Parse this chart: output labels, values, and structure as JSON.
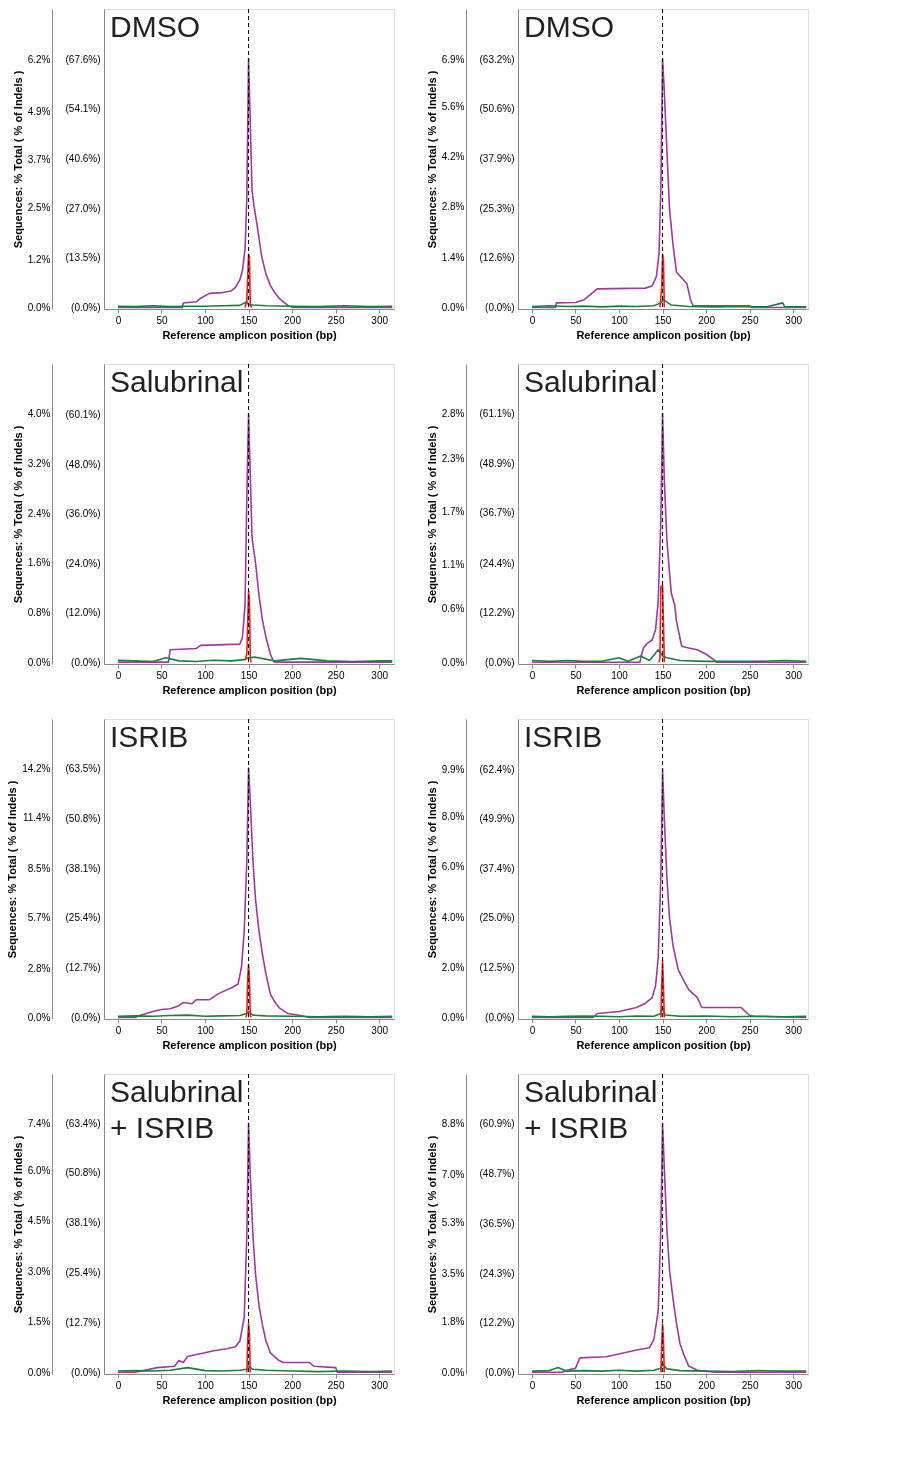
{
  "chart_data": [
    {
      "type": "line",
      "title": "DMSO",
      "xlabel": "Reference amplicon position (bp)",
      "ylabel": "Sequences: % Total  ( % of Indels )",
      "xlim": [
        -16,
        317
      ],
      "xticks": [
        0,
        50,
        100,
        150,
        200,
        250,
        300
      ],
      "ylim": [
        -0.04,
        7.45
      ],
      "yticks": [
        {
          "value": 0,
          "label": "0.0%"
        },
        {
          "value": 1.2,
          "label": "1.2%"
        },
        {
          "value": 2.5,
          "label": "2.5%"
        },
        {
          "value": 3.7,
          "label": "3.7%"
        },
        {
          "value": 4.9,
          "label": "4.9%"
        },
        {
          "value": 6.2,
          "label": "6.2%"
        }
      ],
      "y2lim": [
        -0.4,
        81.3
      ],
      "y2ticks": [
        {
          "value": 0,
          "label": "(0.0%)"
        },
        {
          "value": 13.5,
          "label": "(13.5%)"
        },
        {
          "value": 27.0,
          "label": "(27.0%)"
        },
        {
          "value": 40.6,
          "label": "(40.6%)"
        },
        {
          "value": 54.1,
          "label": "(54.1%)"
        },
        {
          "value": 67.6,
          "label": "(67.6%)"
        }
      ],
      "grid": false,
      "ref_lines": [
        {
          "axis": "x",
          "value": 150,
          "line_style": "dashed",
          "color": "#000000"
        }
      ],
      "series": [
        {
          "color": "#9e3a9e",
          "x": [
            0,
            74,
            75,
            90,
            95,
            105,
            120,
            130,
            135,
            140,
            143,
            146,
            148,
            150,
            152,
            154,
            156,
            160,
            165,
            170,
            175,
            180,
            185,
            190,
            195,
            200,
            315
          ],
          "values": [
            0,
            0,
            0.11,
            0.14,
            0.23,
            0.35,
            0.37,
            0.41,
            0.5,
            0.69,
            0.92,
            1.47,
            2.75,
            6.2,
            4.59,
            2.93,
            2.57,
            2.02,
            1.28,
            0.83,
            0.55,
            0.37,
            0.23,
            0.14,
            0.05,
            0,
            0
          ]
        },
        {
          "color": "#e8211b",
          "axis": "y2",
          "x": [
            146,
            148,
            150,
            151,
            152,
            154
          ],
          "values": [
            0,
            2,
            14.5,
            14,
            0.5,
            0
          ]
        },
        {
          "color": "#1a7f3c",
          "x": [
            0,
            20,
            40,
            60,
            80,
            100,
            120,
            140,
            148,
            150,
            155,
            170,
            200,
            230,
            260,
            290,
            315
          ],
          "values": [
            0.03,
            0.02,
            0.04,
            0.02,
            0.03,
            0.03,
            0.04,
            0.05,
            0.14,
            0.07,
            0.06,
            0.04,
            0.03,
            0.02,
            0.04,
            0.02,
            0.03
          ]
        }
      ]
    },
    {
      "type": "line",
      "title": "DMSO",
      "xlabel": "Reference amplicon position (bp)",
      "ylabel": "Sequences: % Total  ( % of Indels )",
      "xlim": [
        -16,
        317
      ],
      "xticks": [
        0,
        50,
        100,
        150,
        200,
        250,
        300
      ],
      "ylim": [
        -0.04,
        8.3
      ],
      "yticks": [
        {
          "value": 0,
          "label": "0.0%"
        },
        {
          "value": 1.4,
          "label": "1.4%"
        },
        {
          "value": 2.8,
          "label": "2.8%"
        },
        {
          "value": 4.2,
          "label": "4.2%"
        },
        {
          "value": 5.6,
          "label": "5.6%"
        },
        {
          "value": 6.9,
          "label": "6.9%"
        }
      ],
      "y2lim": [
        -0.4,
        76.0
      ],
      "y2ticks": [
        {
          "value": 0,
          "label": "(0.0%)"
        },
        {
          "value": 12.6,
          "label": "(12.6%)"
        },
        {
          "value": 25.3,
          "label": "(25.3%)"
        },
        {
          "value": 37.9,
          "label": "(37.9%)"
        },
        {
          "value": 50.6,
          "label": "(50.6%)"
        },
        {
          "value": 63.2,
          "label": "(63.2%)"
        }
      ],
      "grid": false,
      "ref_lines": [
        {
          "axis": "x",
          "value": 150,
          "line_style": "dashed",
          "color": "#000000"
        }
      ],
      "series": [
        {
          "color": "#9e3a9e",
          "x": [
            0,
            27,
            28,
            50,
            60,
            75,
            130,
            138,
            143,
            146,
            148,
            150,
            152,
            155,
            158,
            162,
            166,
            172,
            178,
            182,
            185,
            250,
            252,
            315
          ],
          "values": [
            0,
            0,
            0.13,
            0.14,
            0.22,
            0.52,
            0.54,
            0.6,
            0.87,
            1.53,
            3.28,
            6.9,
            6.01,
            4.37,
            2.73,
            1.75,
            0.98,
            0.82,
            0.66,
            0.22,
            0.05,
            0.05,
            0,
            0
          ]
        },
        {
          "color": "#e8211b",
          "axis": "y2",
          "x": [
            147,
            149,
            150,
            151,
            152
          ],
          "values": [
            0,
            5,
            13.5,
            12,
            0
          ]
        },
        {
          "color": "#1a7f3c",
          "x": [
            0,
            20,
            40,
            60,
            80,
            100,
            120,
            140,
            148,
            151,
            160,
            180,
            210,
            240,
            270,
            288,
            290,
            315
          ],
          "values": [
            0.03,
            0.05,
            0.03,
            0.04,
            0.02,
            0.04,
            0.03,
            0.05,
            0.13,
            0.22,
            0.07,
            0.03,
            0.02,
            0.03,
            0.02,
            0.13,
            0.03,
            0.02
          ]
        }
      ]
    },
    {
      "type": "line",
      "title": "Salubrinal",
      "xlabel": "Reference amplicon position (bp)",
      "ylabel": "Sequences: % Total  ( % of Indels )",
      "xlim": [
        -16,
        317
      ],
      "xticks": [
        0,
        50,
        100,
        150,
        200,
        250,
        300
      ],
      "ylim": [
        -0.03,
        4.8
      ],
      "yticks": [
        {
          "value": 0,
          "label": "0.0%"
        },
        {
          "value": 0.8,
          "label": "0.8%"
        },
        {
          "value": 1.6,
          "label": "1.6%"
        },
        {
          "value": 2.4,
          "label": "2.4%"
        },
        {
          "value": 3.2,
          "label": "3.2%"
        },
        {
          "value": 4.0,
          "label": "4.0%"
        }
      ],
      "y2lim": [
        -0.4,
        72.2
      ],
      "y2ticks": [
        {
          "value": 0,
          "label": "(0.0%)"
        },
        {
          "value": 12.0,
          "label": "(12.0%)"
        },
        {
          "value": 24.0,
          "label": "(24.0%)"
        },
        {
          "value": 36.0,
          "label": "(36.0%)"
        },
        {
          "value": 48.0,
          "label": "(48.0%)"
        },
        {
          "value": 60.1,
          "label": "(60.1%)"
        }
      ],
      "grid": false,
      "ref_lines": [
        {
          "axis": "x",
          "value": 150,
          "line_style": "dashed",
          "color": "#000000"
        }
      ],
      "series": [
        {
          "color": "#9e3a9e",
          "x": [
            0,
            58,
            60,
            90,
            95,
            140,
            143,
            146,
            148,
            150,
            152,
            154,
            158,
            162,
            166,
            170,
            175,
            178,
            180,
            315
          ],
          "values": [
            0,
            0,
            0.2,
            0.22,
            0.27,
            0.29,
            0.4,
            0.93,
            2.66,
            4.0,
            3.0,
            2.0,
            1.6,
            1.07,
            0.67,
            0.4,
            0.13,
            0.03,
            0,
            0
          ]
        },
        {
          "color": "#e8211b",
          "axis": "y2",
          "x": [
            146,
            148,
            150,
            151,
            152,
            153
          ],
          "values": [
            0.5,
            2,
            17.2,
            15,
            1,
            0
          ]
        },
        {
          "color": "#1a7f3c",
          "x": [
            0,
            20,
            40,
            55,
            70,
            90,
            110,
            130,
            145,
            150,
            158,
            180,
            210,
            240,
            270,
            300,
            315
          ],
          "values": [
            0.03,
            0.02,
            0.01,
            0.07,
            0.02,
            0.01,
            0.03,
            0.02,
            0.04,
            0.07,
            0.08,
            0.02,
            0.06,
            0.02,
            0.01,
            0.02,
            0.02
          ]
        }
      ]
    },
    {
      "type": "line",
      "title": "Salubrinal",
      "xlabel": "Reference amplicon position (bp)",
      "ylabel": "Sequences: % Total  ( % of Indels )",
      "xlim": [
        -16,
        317
      ],
      "xticks": [
        0,
        50,
        100,
        150,
        200,
        250,
        300
      ],
      "ylim": [
        -0.02,
        3.36
      ],
      "yticks": [
        {
          "value": 0,
          "label": "0.0%"
        },
        {
          "value": 0.6,
          "label": "0.6%"
        },
        {
          "value": 1.1,
          "label": "1.1%"
        },
        {
          "value": 1.7,
          "label": "1.7%"
        },
        {
          "value": 2.3,
          "label": "2.3%"
        },
        {
          "value": 2.8,
          "label": "2.8%"
        }
      ],
      "y2lim": [
        -0.4,
        73.3
      ],
      "y2ticks": [
        {
          "value": 0,
          "label": "(0.0%)"
        },
        {
          "value": 12.2,
          "label": "(12.2%)"
        },
        {
          "value": 24.4,
          "label": "(24.4%)"
        },
        {
          "value": 36.7,
          "label": "(36.7%)"
        },
        {
          "value": 48.9,
          "label": "(48.9%)"
        },
        {
          "value": 61.1,
          "label": "(61.1%)"
        }
      ],
      "grid": false,
      "ref_lines": [
        {
          "axis": "x",
          "value": 150,
          "line_style": "dashed",
          "color": "#000000"
        }
      ],
      "series": [
        {
          "color": "#9e3a9e",
          "x": [
            0,
            124,
            125,
            128,
            132,
            138,
            142,
            145,
            148,
            150,
            152,
            155,
            158,
            160,
            164,
            166,
            170,
            172,
            180,
            190,
            200,
            210,
            212,
            315
          ],
          "values": [
            0,
            0,
            0.05,
            0.16,
            0.21,
            0.25,
            0.37,
            0.69,
            1.6,
            2.8,
            2.06,
            1.37,
            1.01,
            0.78,
            0.64,
            0.46,
            0.27,
            0.18,
            0.16,
            0.14,
            0.09,
            0.02,
            0,
            0
          ]
        },
        {
          "color": "#e8211b",
          "axis": "y2",
          "x": [
            146,
            147,
            148,
            150,
            151,
            152
          ],
          "values": [
            0,
            1,
            18.5,
            19,
            10,
            0
          ]
        },
        {
          "color": "#1a7f3c",
          "x": [
            0,
            20,
            40,
            60,
            80,
            100,
            110,
            125,
            135,
            145,
            150,
            155,
            170,
            200,
            230,
            260,
            290,
            315
          ],
          "values": [
            0.02,
            0.01,
            0.02,
            0.01,
            0.01,
            0.05,
            0.01,
            0.07,
            0.02,
            0.14,
            0.07,
            0.05,
            0.02,
            0.01,
            0.01,
            0.01,
            0.02,
            0.01
          ]
        }
      ]
    },
    {
      "type": "line",
      "title": "ISRIB",
      "xlabel": "Reference amplicon position (bp)",
      "ylabel": "Sequences: % Total  ( % of Indels )",
      "xlim": [
        -16,
        317
      ],
      "xticks": [
        0,
        50,
        100,
        150,
        200,
        250,
        300
      ],
      "ylim": [
        -0.09,
        17.0
      ],
      "yticks": [
        {
          "value": 0,
          "label": "0.0%"
        },
        {
          "value": 2.8,
          "label": "2.8%"
        },
        {
          "value": 5.7,
          "label": "5.7%"
        },
        {
          "value": 8.5,
          "label": "8.5%"
        },
        {
          "value": 11.4,
          "label": "11.4%"
        },
        {
          "value": 14.2,
          "label": "14.2%"
        }
      ],
      "y2lim": [
        -0.4,
        76.2
      ],
      "y2ticks": [
        {
          "value": 0,
          "label": "(0.0%)"
        },
        {
          "value": 12.7,
          "label": "(12.7%)"
        },
        {
          "value": 25.4,
          "label": "(25.4%)"
        },
        {
          "value": 38.1,
          "label": "(38.1%)"
        },
        {
          "value": 50.8,
          "label": "(50.8%)"
        },
        {
          "value": 63.5,
          "label": "(63.5%)"
        }
      ],
      "grid": false,
      "ref_lines": [
        {
          "axis": "x",
          "value": 150,
          "line_style": "dashed",
          "color": "#000000"
        }
      ],
      "series": [
        {
          "color": "#9e3a9e",
          "x": [
            0,
            20,
            25,
            40,
            50,
            60,
            70,
            75,
            85,
            90,
            105,
            115,
            125,
            130,
            138,
            142,
            145,
            148,
            150,
            152,
            155,
            158,
            162,
            166,
            170,
            175,
            180,
            185,
            195,
            210,
            220,
            315
          ],
          "values": [
            0,
            0,
            0.11,
            0.34,
            0.45,
            0.49,
            0.67,
            0.85,
            0.78,
            1.01,
            1.01,
            1.34,
            1.57,
            1.68,
            1.9,
            2.91,
            4.92,
            8.94,
            14.2,
            12.3,
            8.94,
            6.71,
            4.92,
            3.58,
            2.46,
            1.34,
            0.89,
            0.56,
            0.22,
            0.11,
            0,
            0
          ]
        },
        {
          "color": "#e8211b",
          "axis": "y2",
          "x": [
            147,
            148,
            149,
            150,
            151,
            152,
            153
          ],
          "values": [
            0,
            1,
            10,
            13.5,
            10,
            0.5,
            0
          ]
        },
        {
          "color": "#1a7f3c",
          "x": [
            0,
            20,
            40,
            60,
            80,
            100,
            120,
            140,
            148,
            150,
            155,
            170,
            200,
            230,
            260,
            290,
            315
          ],
          "values": [
            0.07,
            0.09,
            0.07,
            0.11,
            0.13,
            0.07,
            0.09,
            0.11,
            0.22,
            0.34,
            0.13,
            0.09,
            0.07,
            0.04,
            0.07,
            0.04,
            0.07
          ]
        }
      ]
    },
    {
      "type": "line",
      "title": "ISRIB",
      "xlabel": "Reference amplicon position (bp)",
      "ylabel": "Sequences: % Total  ( % of Indels )",
      "xlim": [
        -16,
        317
      ],
      "xticks": [
        0,
        50,
        100,
        150,
        200,
        250,
        300
      ],
      "ylim": [
        -0.06,
        11.9
      ],
      "yticks": [
        {
          "value": 0,
          "label": "0.0%"
        },
        {
          "value": 2.0,
          "label": "2.0%"
        },
        {
          "value": 4.0,
          "label": "4.0%"
        },
        {
          "value": 6.0,
          "label": "6.0%"
        },
        {
          "value": 8.0,
          "label": "8.0%"
        },
        {
          "value": 9.9,
          "label": "9.9%"
        }
      ],
      "y2lim": [
        -0.4,
        75.0
      ],
      "y2ticks": [
        {
          "value": 0,
          "label": "(0.0%)"
        },
        {
          "value": 12.5,
          "label": "(12.5%)"
        },
        {
          "value": 25.0,
          "label": "(25.0%)"
        },
        {
          "value": 37.4,
          "label": "(37.4%)"
        },
        {
          "value": 49.9,
          "label": "(49.9%)"
        },
        {
          "value": 62.4,
          "label": "(62.4%)"
        }
      ],
      "grid": false,
      "ref_lines": [
        {
          "axis": "x",
          "value": 150,
          "line_style": "dashed",
          "color": "#000000"
        }
      ],
      "series": [
        {
          "color": "#9e3a9e",
          "x": [
            0,
            70,
            75,
            85,
            100,
            120,
            130,
            138,
            142,
            145,
            148,
            150,
            152,
            155,
            158,
            162,
            168,
            175,
            180,
            190,
            195,
            240,
            250,
            255,
            315
          ],
          "values": [
            0,
            0,
            0.16,
            0.19,
            0.24,
            0.4,
            0.56,
            0.79,
            1.27,
            2.38,
            5.55,
            9.9,
            7.94,
            5.55,
            3.97,
            2.86,
            1.9,
            1.43,
            1.11,
            0.79,
            0.4,
            0.4,
            0.08,
            0.05,
            0
          ]
        },
        {
          "color": "#e8211b",
          "axis": "y2",
          "x": [
            148,
            149,
            150,
            151,
            152
          ],
          "values": [
            0,
            8,
            14.3,
            8,
            0
          ]
        },
        {
          "color": "#1a7f3c",
          "x": [
            0,
            20,
            40,
            60,
            80,
            100,
            120,
            140,
            148,
            150,
            153,
            170,
            200,
            230,
            260,
            290,
            315
          ],
          "values": [
            0.05,
            0.03,
            0.05,
            0.06,
            0.05,
            0.03,
            0.06,
            0.05,
            0.16,
            0.4,
            0.1,
            0.05,
            0.06,
            0.03,
            0.05,
            0.03,
            0.05
          ]
        }
      ]
    },
    {
      "type": "line",
      "title": "Salubrinal\n+ ISRIB",
      "xlabel": "Reference amplicon position (bp)",
      "ylabel": "Sequences: % Total  ( % of Indels )",
      "xlim": [
        -16,
        317
      ],
      "xticks": [
        0,
        50,
        100,
        150,
        200,
        250,
        300
      ],
      "ylim": [
        -0.05,
        8.87
      ],
      "yticks": [
        {
          "value": 0,
          "label": "0.0%"
        },
        {
          "value": 1.5,
          "label": "1.5%"
        },
        {
          "value": 3.0,
          "label": "3.0%"
        },
        {
          "value": 4.5,
          "label": "4.5%"
        },
        {
          "value": 6.0,
          "label": "6.0%"
        },
        {
          "value": 7.4,
          "label": "7.4%"
        }
      ],
      "y2lim": [
        -0.4,
        76.0
      ],
      "y2ticks": [
        {
          "value": 0,
          "label": "(0.0%)"
        },
        {
          "value": 12.7,
          "label": "(12.7%)"
        },
        {
          "value": 25.4,
          "label": "(25.4%)"
        },
        {
          "value": 38.1,
          "label": "(38.1%)"
        },
        {
          "value": 50.8,
          "label": "(50.8%)"
        },
        {
          "value": 63.4,
          "label": "(63.4%)"
        }
      ],
      "grid": false,
      "ref_lines": [
        {
          "axis": "x",
          "value": 150,
          "line_style": "dashed",
          "color": "#000000"
        }
      ],
      "series": [
        {
          "color": "#9e3a9e",
          "x": [
            0,
            20,
            45,
            65,
            70,
            75,
            80,
            90,
            100,
            110,
            125,
            135,
            140,
            145,
            148,
            150,
            152,
            155,
            158,
            162,
            166,
            170,
            175,
            185,
            190,
            220,
            225,
            250,
            252,
            315
          ],
          "values": [
            0,
            0,
            0.14,
            0.18,
            0.35,
            0.29,
            0.47,
            0.53,
            0.58,
            0.64,
            0.7,
            0.76,
            0.93,
            1.63,
            4.08,
            7.4,
            5.84,
            4.08,
            2.92,
            1.98,
            1.4,
            0.93,
            0.58,
            0.35,
            0.29,
            0.29,
            0.18,
            0.14,
            0,
            0
          ]
        },
        {
          "color": "#e8211b",
          "axis": "y2",
          "x": [
            148,
            149,
            150,
            151,
            152
          ],
          "values": [
            0,
            8,
            12.4,
            10,
            0
          ]
        },
        {
          "color": "#1a7f3c",
          "x": [
            0,
            20,
            40,
            60,
            80,
            100,
            120,
            140,
            148,
            150,
            155,
            170,
            200,
            230,
            260,
            290,
            315
          ],
          "values": [
            0.04,
            0.05,
            0.04,
            0.06,
            0.14,
            0.05,
            0.04,
            0.06,
            0.09,
            0.18,
            0.09,
            0.06,
            0.04,
            0.02,
            0.04,
            0.02,
            0.04
          ]
        }
      ]
    },
    {
      "type": "line",
      "title": "Salubrinal\n+ ISRIB",
      "xlabel": "Reference amplicon position (bp)",
      "ylabel": "Sequences: % Total  ( % of Indels )",
      "xlim": [
        -16,
        317
      ],
      "xticks": [
        0,
        50,
        100,
        150,
        200,
        250,
        300
      ],
      "ylim": [
        -0.06,
        10.55
      ],
      "yticks": [
        {
          "value": 0,
          "label": "0.0%"
        },
        {
          "value": 1.8,
          "label": "1.8%"
        },
        {
          "value": 3.5,
          "label": "3.5%"
        },
        {
          "value": 5.3,
          "label": "5.3%"
        },
        {
          "value": 7.0,
          "label": "7.0%"
        },
        {
          "value": 8.8,
          "label": "8.8%"
        }
      ],
      "y2lim": [
        -0.4,
        73.0
      ],
      "y2ticks": [
        {
          "value": 0,
          "label": "(0.0%)"
        },
        {
          "value": 12.2,
          "label": "(12.2%)"
        },
        {
          "value": 24.3,
          "label": "(24.3%)"
        },
        {
          "value": 36.5,
          "label": "(36.5%)"
        },
        {
          "value": 48.7,
          "label": "(48.7%)"
        },
        {
          "value": 60.9,
          "label": "(60.9%)"
        }
      ],
      "grid": false,
      "ref_lines": [
        {
          "axis": "x",
          "value": 150,
          "line_style": "dashed",
          "color": "#000000"
        }
      ],
      "series": [
        {
          "color": "#9e3a9e",
          "x": [
            0,
            35,
            40,
            50,
            55,
            85,
            100,
            120,
            135,
            140,
            145,
            148,
            150,
            152,
            155,
            158,
            162,
            166,
            170,
            175,
            180,
            190,
            200,
            210,
            315
          ],
          "values": [
            0,
            0,
            0.07,
            0.14,
            0.51,
            0.55,
            0.65,
            0.79,
            0.87,
            1.16,
            2.17,
            5.06,
            8.8,
            7.23,
            5.06,
            3.61,
            2.6,
            1.73,
            1.01,
            0.58,
            0.22,
            0.07,
            0.04,
            0,
            0
          ]
        },
        {
          "color": "#e8211b",
          "axis": "y2",
          "x": [
            148,
            149,
            150,
            151,
            152
          ],
          "values": [
            0,
            7,
            11.8,
            8,
            0
          ]
        },
        {
          "color": "#1a7f3c",
          "x": [
            0,
            20,
            30,
            40,
            60,
            80,
            100,
            120,
            140,
            148,
            150,
            155,
            170,
            200,
            230,
            260,
            290,
            315
          ],
          "values": [
            0.04,
            0.06,
            0.17,
            0.04,
            0.06,
            0.04,
            0.07,
            0.04,
            0.07,
            0.14,
            0.29,
            0.12,
            0.06,
            0.04,
            0.03,
            0.06,
            0.04,
            0.04
          ]
        }
      ]
    }
  ]
}
